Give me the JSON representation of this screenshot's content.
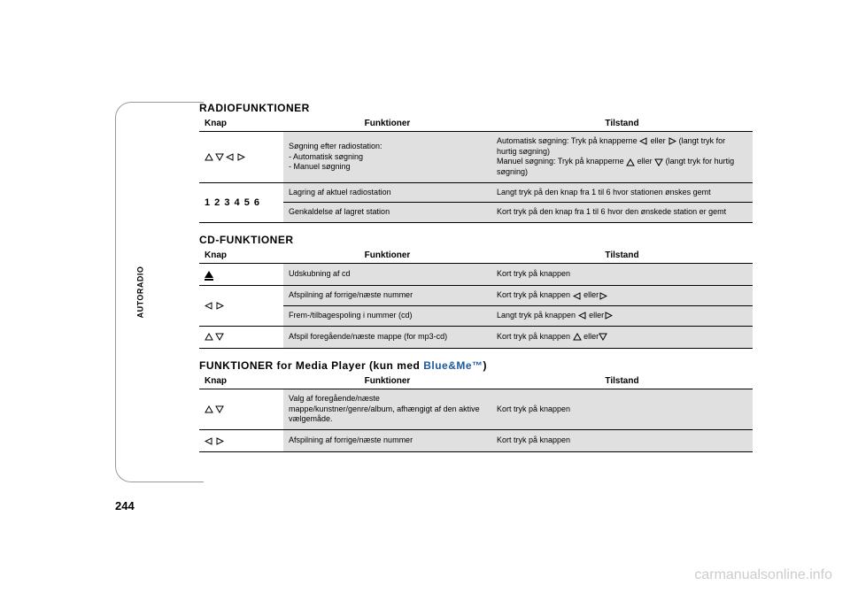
{
  "page": {
    "side_label": "AUTORADIO",
    "page_number": "244",
    "watermark": "carmanualsonline.info"
  },
  "colors": {
    "shaded_bg": "#e0e0e0",
    "border": "#000000",
    "text": "#000000",
    "blue_brand": "#1a5aa0",
    "watermark": "#cccccc",
    "page_bg": "#ffffff"
  },
  "typography": {
    "title_fontsize_pt": 12,
    "header_fontsize_pt": 10,
    "body_fontsize_pt": 9
  },
  "sections": [
    {
      "title": "RADIOFUNKTIONER",
      "title_suffix": "",
      "columns": [
        "Knap",
        "Funktioner",
        "Tilstand"
      ],
      "rows": [
        {
          "knap_icons": [
            "outline-up",
            "outline-down",
            "outline-left",
            "outline-right"
          ],
          "knap_text": "",
          "func": "Søgning efter radiostation:\n- Automatisk søgning\n- Manuel søgning",
          "tilstand_segments": [
            {
              "t": "Automatisk søgning: Tryk på knapperne "
            },
            {
              "icon": "outline-left"
            },
            {
              "t": " eller "
            },
            {
              "icon": "outline-right"
            },
            {
              "t": " (langt tryk for hurtig søgning)"
            },
            {
              "br": true
            },
            {
              "t": "Manuel søgning: Tryk på knapperne "
            },
            {
              "icon": "outline-up"
            },
            {
              "t": " eller "
            },
            {
              "icon": "outline-down"
            },
            {
              "t": " (langt tryk for hurtig søgning)"
            }
          ],
          "knap_rowspan": 1
        },
        {
          "knap_icons": [],
          "knap_text": "1 2 3 4 5 6",
          "knap_rowspan": 2,
          "func": "Lagring af aktuel radiostation",
          "tilstand_segments": [
            {
              "t": "Langt tryk på den knap fra 1 til 6 hvor stationen ønskes gemt"
            }
          ]
        },
        {
          "func": "Genkaldelse af lagret station",
          "tilstand_segments": [
            {
              "t": "Kort tryk på den knap fra 1 til 6 hvor den ønskede station er gemt"
            }
          ]
        }
      ]
    },
    {
      "title": "CD-FUNKTIONER",
      "title_suffix": "",
      "columns": [
        "Knap",
        "Funktioner",
        "Tilstand"
      ],
      "rows": [
        {
          "knap_icons": [
            "eject"
          ],
          "knap_text": "",
          "knap_rowspan": 1,
          "func": "Udskubning af cd",
          "tilstand_segments": [
            {
              "t": "Kort tryk på knappen"
            }
          ]
        },
        {
          "knap_icons": [
            "outline-left",
            "outline-right"
          ],
          "knap_text": "",
          "knap_rowspan": 2,
          "func": "Afspilning af forrige/næste nummer",
          "tilstand_segments": [
            {
              "t": "Kort tryk på knappen "
            },
            {
              "icon": "outline-left"
            },
            {
              "t": " eller"
            },
            {
              "icon": "outline-right"
            }
          ]
        },
        {
          "func": "Frem-/tilbagespoling i nummer (cd)",
          "tilstand_segments": [
            {
              "t": "Langt tryk på knappen "
            },
            {
              "icon": "outline-left"
            },
            {
              "t": " eller"
            },
            {
              "icon": "outline-right"
            }
          ]
        },
        {
          "knap_icons": [
            "outline-up",
            "outline-down"
          ],
          "knap_text": "",
          "knap_rowspan": 1,
          "func": "Afspil foregående/næste mappe (for mp3-cd)",
          "tilstand_segments": [
            {
              "t": "Kort tryk på knappen "
            },
            {
              "icon": "outline-up"
            },
            {
              "t": " eller"
            },
            {
              "icon": "outline-down"
            }
          ]
        }
      ]
    },
    {
      "title": "FUNKTIONER for Media Player (kun med ",
      "title_suffix_blue": "Blue&Me™",
      "title_close": ")",
      "columns": [
        "Knap",
        "Funktioner",
        "Tilstand"
      ],
      "rows": [
        {
          "knap_icons": [
            "outline-up",
            "outline-down"
          ],
          "knap_text": "",
          "knap_rowspan": 1,
          "func": "Valg af foregående/næste mappe/kunstner/genre/album, afhængigt af den aktive vælgemåde.",
          "tilstand_segments": [
            {
              "t": "Kort tryk på knappen"
            }
          ]
        },
        {
          "knap_icons": [
            "outline-left",
            "outline-right"
          ],
          "knap_text": "",
          "knap_rowspan": 1,
          "func": "Afspilning af forrige/næste nummer",
          "tilstand_segments": [
            {
              "t": "Kort tryk på knappen"
            }
          ]
        }
      ]
    }
  ]
}
